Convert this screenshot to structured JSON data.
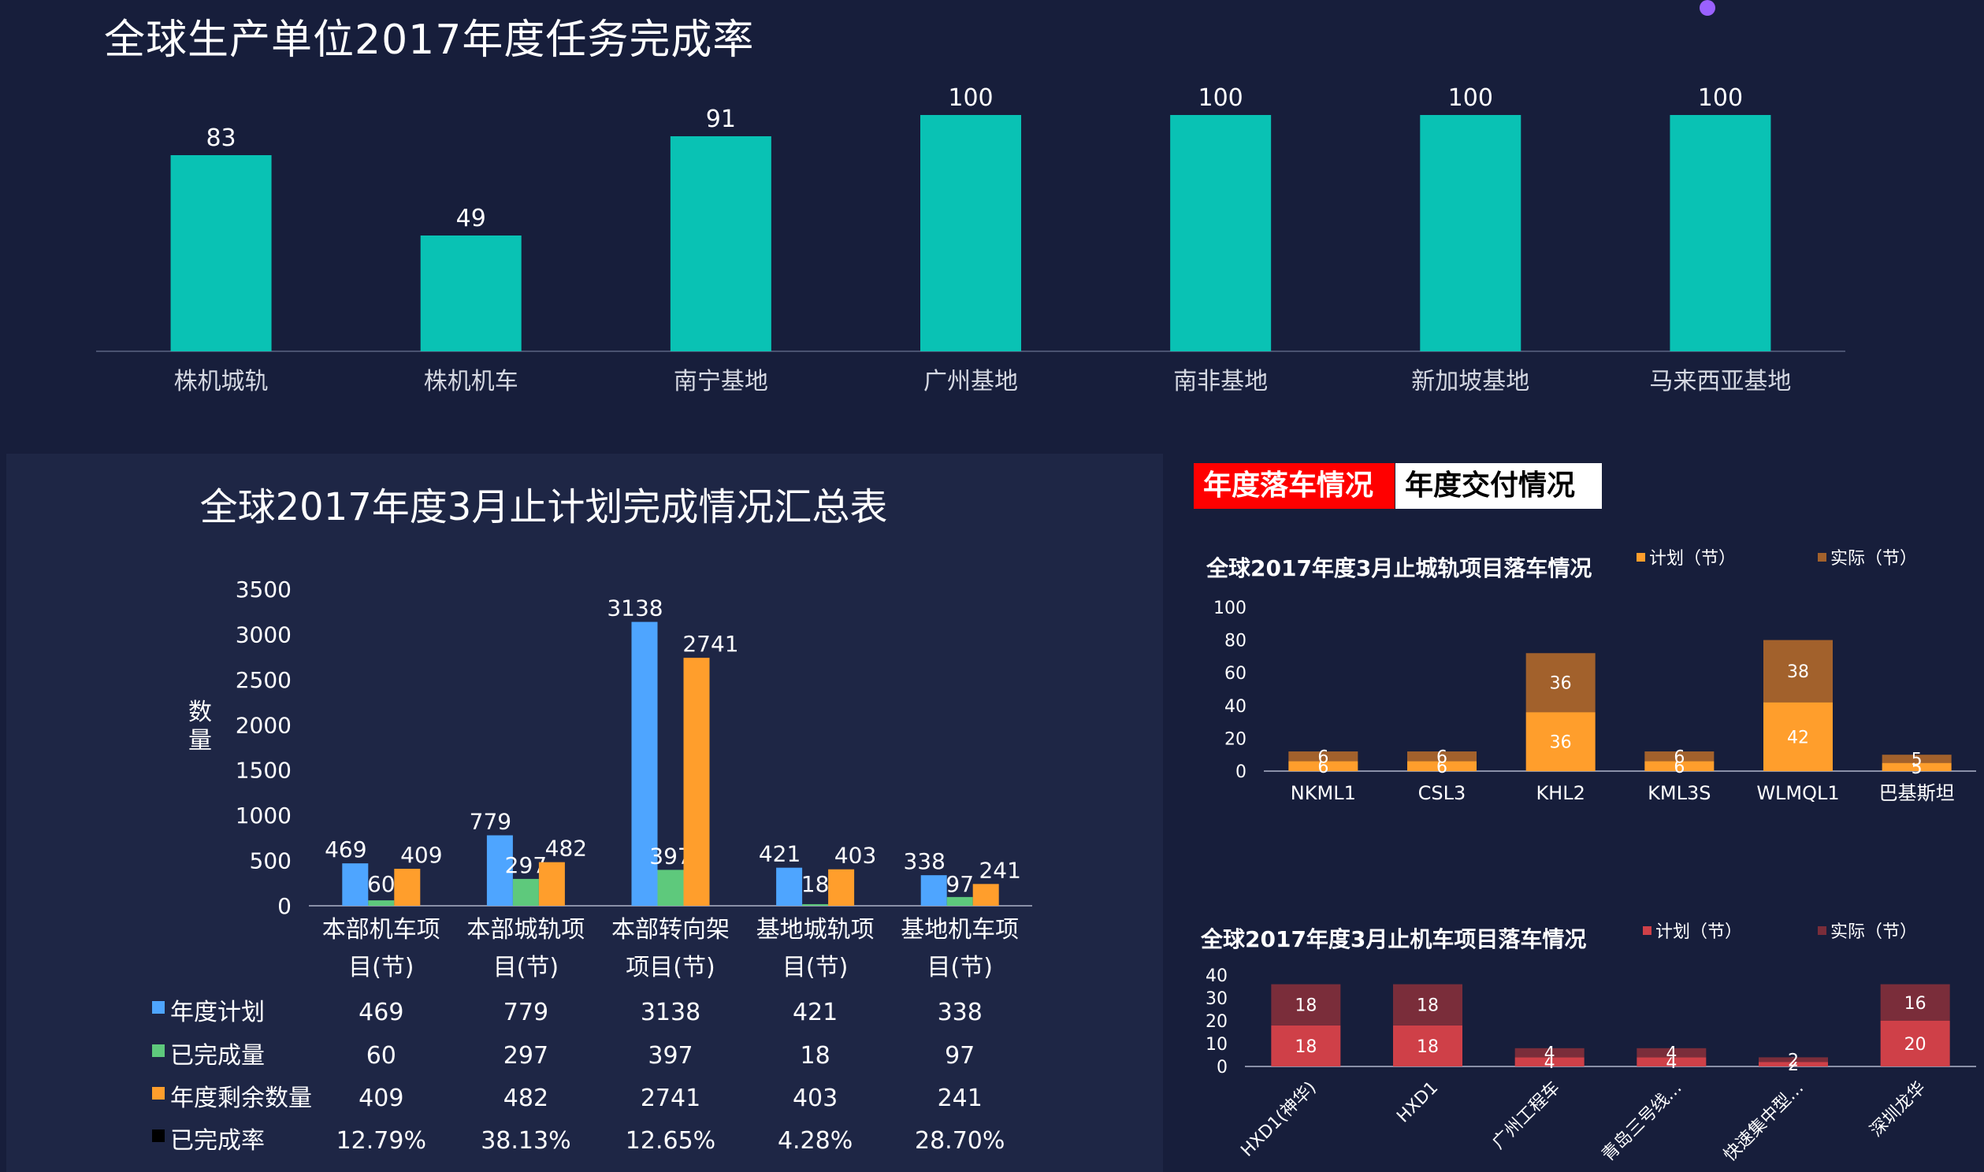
{
  "page": {
    "title": "全球生产单位2017年度任务完成率",
    "tabs": [
      "年度落车情况",
      "年度交付情况"
    ]
  },
  "chart_data": [
    {
      "type": "bar",
      "title": "全球生产单位2017年度任务完成率",
      "categories": [
        "株机城轨",
        "株机机车",
        "南宁基地",
        "广州基地",
        "南非基地",
        "新加坡基地",
        "马来西亚基地"
      ],
      "values": [
        83,
        49,
        91,
        100,
        100,
        100,
        100
      ],
      "ylim": [
        0,
        100
      ],
      "color": "#09c2b4",
      "grid": false
    },
    {
      "type": "bar",
      "title": "全球2017年度3月止计划完成情况汇总表",
      "ylabel": "数量",
      "ylim": [
        0,
        3500
      ],
      "yticks": [
        0,
        500,
        1000,
        1500,
        2000,
        2500,
        3000,
        3500
      ],
      "categories": [
        [
          "本部机车项",
          "目(节)"
        ],
        [
          "本部城轨项",
          "目(节)"
        ],
        [
          "本部转向架",
          "项目(节)"
        ],
        [
          "基地城轨项",
          "目(节)"
        ],
        [
          "基地机车项",
          "目(节)"
        ]
      ],
      "series": [
        {
          "name": "年度计划",
          "color": "#4ea5ff",
          "values": [
            469,
            779,
            3138,
            421,
            338
          ]
        },
        {
          "name": "已完成量",
          "color": "#5ec97c",
          "values": [
            60,
            297,
            397,
            18,
            97
          ]
        },
        {
          "name": "年度剩余数量",
          "color": "#ff9e2c",
          "values": [
            409,
            482,
            2741,
            403,
            241
          ]
        }
      ],
      "table_rows": [
        {
          "name": "年度计划",
          "color": "#4ea5ff",
          "cells": [
            "469",
            "779",
            "3138",
            "421",
            "338"
          ]
        },
        {
          "name": "已完成量",
          "color": "#5ec97c",
          "cells": [
            "60",
            "297",
            "397",
            "18",
            "97"
          ]
        },
        {
          "name": "年度剩余数量",
          "color": "#ff9e2c",
          "cells": [
            "409",
            "482",
            "2741",
            "403",
            "241"
          ]
        },
        {
          "name": "已完成率",
          "color": "#000000",
          "cells": [
            "12.79%",
            "38.13%",
            "12.65%",
            "4.28%",
            "28.70%"
          ]
        }
      ],
      "grid": false,
      "legend": "table-left"
    },
    {
      "type": "bar",
      "stacked": true,
      "title": "全球2017年度3月止城轨项目落车情况",
      "categories": [
        "NKML1",
        "CSL3",
        "KHL2",
        "KML3S",
        "WLMQL1",
        "巴基斯坦"
      ],
      "series": [
        {
          "name": "计划（节）",
          "color": "#ff9e2c",
          "values": [
            6,
            6,
            36,
            6,
            42,
            5
          ]
        },
        {
          "name": "实际（节）",
          "color": "#a2612c",
          "values": [
            6,
            6,
            36,
            6,
            38,
            5
          ]
        }
      ],
      "ylim": [
        0,
        100
      ],
      "yticks": [
        0,
        20,
        40,
        60,
        80,
        100
      ],
      "legend": "top-right"
    },
    {
      "type": "bar",
      "stacked": true,
      "title": "全球2017年度3月止机车项目落车情况",
      "categories": [
        "HXD1(神华)",
        "HXD1",
        "广州工程车",
        "青岛三号线…",
        "快速集中型…",
        "深圳龙华"
      ],
      "series": [
        {
          "name": "计划（节）",
          "color": "#cf4048",
          "values": [
            18,
            18,
            4,
            4,
            2,
            20
          ]
        },
        {
          "name": "实际（节）",
          "color": "#7a2d3a",
          "values": [
            18,
            18,
            4,
            4,
            2,
            16
          ]
        }
      ],
      "ylim": [
        0,
        40
      ],
      "yticks": [
        0,
        10,
        20,
        30,
        40
      ],
      "legend": "top-right"
    }
  ]
}
